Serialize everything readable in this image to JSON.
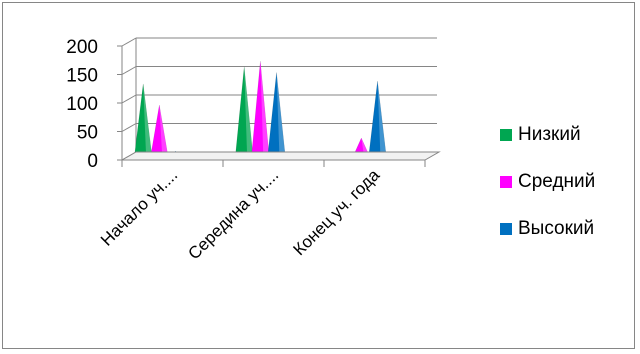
{
  "chart_data": {
    "type": "area",
    "title": "",
    "xlabel": "",
    "ylabel": "",
    "categories": [
      "Начало уч....",
      "Середина уч....",
      "Конец уч. года"
    ],
    "series": [
      {
        "name": "Низкий",
        "color": "#00A651",
        "values": [
          130,
          160,
          5
        ]
      },
      {
        "name": "Средний",
        "color": "#FF00FF",
        "values": [
          93,
          170,
          35
        ]
      },
      {
        "name": "Высокий",
        "color": "#0070C0",
        "values": [
          12,
          150,
          135
        ]
      }
    ],
    "ylim": [
      0,
      200
    ],
    "yticks": [
      "200",
      "150",
      "100",
      "50",
      "0"
    ],
    "grid": true,
    "legend_position": "right"
  }
}
